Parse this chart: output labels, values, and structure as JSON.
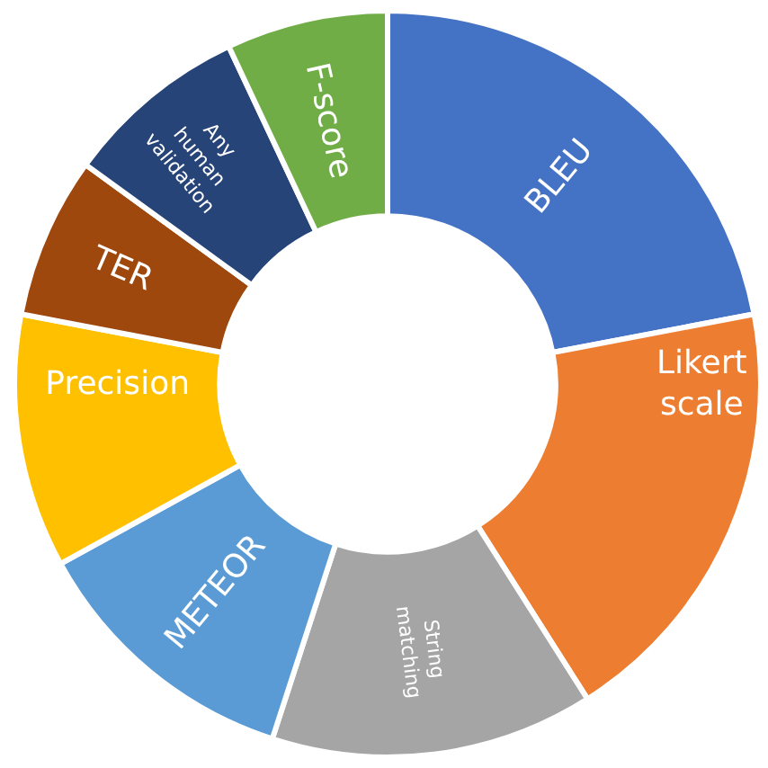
{
  "chart_data": {
    "type": "donut",
    "categories": [
      "BLEU",
      "Likert scale",
      "String matching",
      "METEOR",
      "Precision",
      "TER",
      "Any human validation",
      "F-score"
    ],
    "values": [
      22,
      19,
      14,
      12,
      11,
      7,
      8,
      7
    ],
    "colors": [
      "#4472c4",
      "#ed7d31",
      "#a5a5a5",
      "#5b9bd5",
      "#ffc000",
      "#9e480e",
      "#264478",
      "#70ad47"
    ],
    "legend": false
  }
}
